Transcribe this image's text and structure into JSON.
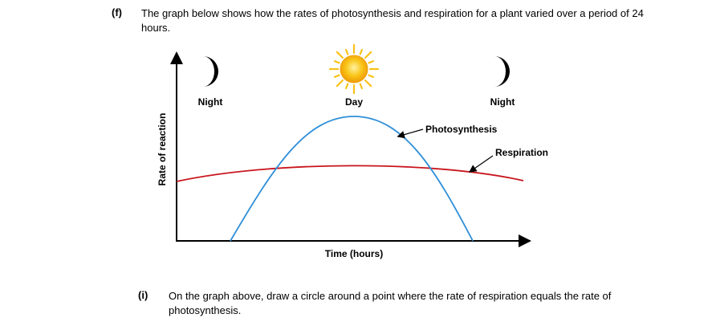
{
  "question": {
    "label": "(f)",
    "text": "The graph below shows how the rates of photosynthesis and respiration for a plant varied over a period of 24 hours."
  },
  "graph": {
    "y_axis_label": "Rate of reaction",
    "x_axis_label": "Time (hours)",
    "period_labels": {
      "night_left": "Night",
      "day": "Day",
      "night_right": "Night"
    },
    "curve_labels": {
      "photosynthesis": "Photosynthesis",
      "respiration": "Respiration"
    },
    "colors": {
      "photosynthesis": "#2f8fd8",
      "respiration": "#c8161d",
      "sun_core": "#f6b20f",
      "sun_rays": "#f8c21a",
      "moon": "#000000"
    },
    "icons": [
      "moon-icon",
      "sun-icon",
      "moon-icon"
    ]
  },
  "subquestion": {
    "label": "(i)",
    "text": "On the graph above, draw a circle around a point where the rate of respiration equals the rate of photosynthesis."
  }
}
